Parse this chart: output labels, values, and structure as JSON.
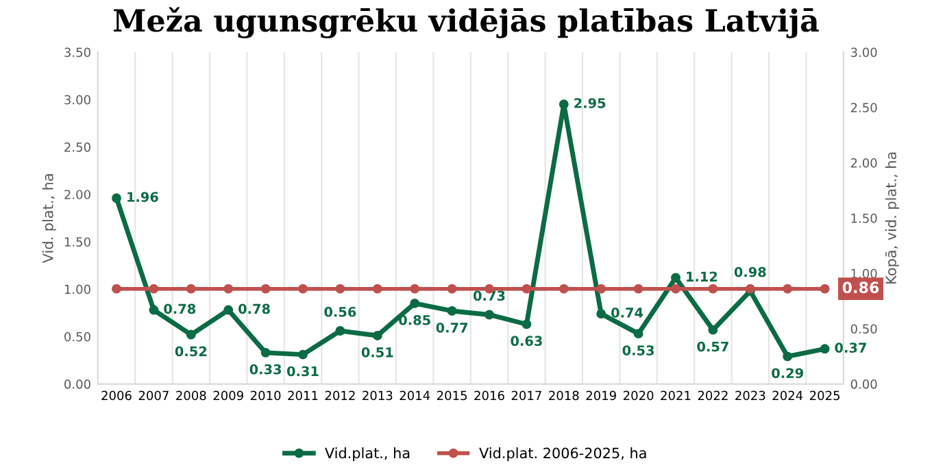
{
  "chart_data": {
    "type": "line",
    "title": "Meža ugunsgrēku vidējās platības Latvijā",
    "ylabel": "Vid. plat., ha",
    "y2label": "Kopā, vid. plat., ha",
    "categories": [
      "2006",
      "2007",
      "2008",
      "2009",
      "2010",
      "2011",
      "2012",
      "2013",
      "2014",
      "2015",
      "2016",
      "2017",
      "2018",
      "2019",
      "2020",
      "2021",
      "2022",
      "2023",
      "2024",
      "2025"
    ],
    "series": [
      {
        "name": "Vid.plat., ha",
        "color": "#0b6b45",
        "values": [
          1.96,
          0.78,
          0.52,
          0.78,
          0.33,
          0.31,
          0.56,
          0.51,
          0.85,
          0.77,
          0.73,
          0.63,
          2.95,
          0.74,
          0.53,
          1.12,
          0.57,
          0.98,
          0.29,
          0.37
        ],
        "value_labels": [
          "1.96",
          "0.78",
          "0.52",
          "0.78",
          "0.33",
          "0.31",
          "0.56",
          "0.51",
          "0.85",
          "0.77",
          "0.73",
          "0.63",
          "2.95",
          "0.74",
          "0.53",
          "1.12",
          "0.57",
          "0.98",
          "0.29",
          "0.37"
        ]
      },
      {
        "name": "Vid.plat. 2006-2025, ha",
        "color": "#c0504d",
        "axis": "y2",
        "values": [
          0.86,
          0.86,
          0.86,
          0.86,
          0.86,
          0.86,
          0.86,
          0.86,
          0.86,
          0.86,
          0.86,
          0.86,
          0.86,
          0.86,
          0.86,
          0.86,
          0.86,
          0.86,
          0.86,
          0.86
        ],
        "value_labels": [
          null,
          null,
          null,
          null,
          null,
          null,
          null,
          null,
          null,
          null,
          null,
          null,
          null,
          null,
          null,
          null,
          null,
          null,
          null,
          "0.86"
        ]
      }
    ],
    "ylim": [
      0,
      3.5
    ],
    "yticks": [
      {
        "value": 0,
        "label": "0.00"
      },
      {
        "value": 0.5,
        "label": "0.50"
      },
      {
        "value": 1,
        "label": "1.00"
      },
      {
        "value": 1.5,
        "label": "1.50"
      },
      {
        "value": 2,
        "label": "2.00"
      },
      {
        "value": 2.5,
        "label": "2.50"
      },
      {
        "value": 3,
        "label": "3.00"
      },
      {
        "value": 3.5,
        "label": "3.50"
      }
    ],
    "y2lim": [
      0,
      3
    ],
    "y2ticks": [
      {
        "value": 0,
        "label": "0.00"
      },
      {
        "value": 0.5,
        "label": "0.50"
      },
      {
        "value": 1,
        "label": "1.00"
      },
      {
        "value": 1.5,
        "label": "1.50"
      },
      {
        "value": 2,
        "label": "2.00"
      },
      {
        "value": 2.5,
        "label": "2.50"
      },
      {
        "value": 3,
        "label": "3.00"
      }
    ],
    "grid": "x",
    "legend": "bottom",
    "marker": "circle",
    "line_style": "solid"
  }
}
